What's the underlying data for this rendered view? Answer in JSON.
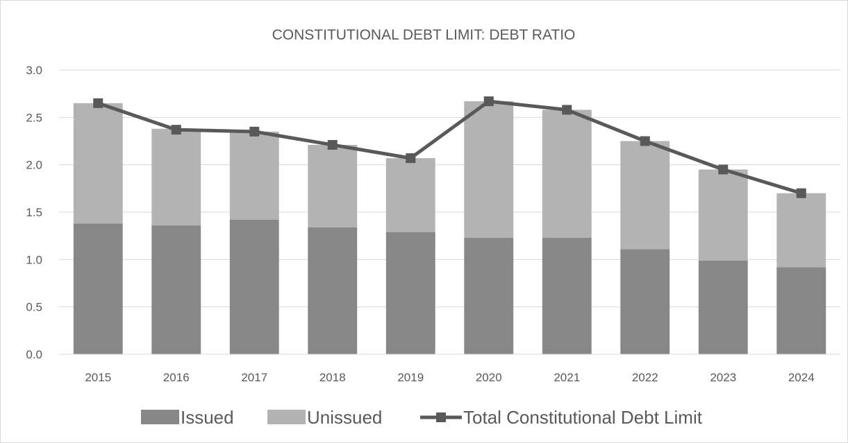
{
  "chart_data": {
    "type": "bar",
    "stacked": true,
    "title": "CONSTITUTIONAL DEBT LIMIT: DEBT RATIO",
    "xlabel": "",
    "ylabel": "",
    "categories": [
      "2015",
      "2016",
      "2017",
      "2018",
      "2019",
      "2020",
      "2021",
      "2022",
      "2023",
      "2024"
    ],
    "ylim": [
      0,
      3.0
    ],
    "yticks": [
      "0.0",
      "0.5",
      "1.0",
      "1.5",
      "2.0",
      "2.5",
      "3.0"
    ],
    "grid": true,
    "legend_position": "bottom",
    "series": [
      {
        "name": "Issued",
        "kind": "bar",
        "color": "#878787",
        "values": [
          1.38,
          1.36,
          1.42,
          1.34,
          1.29,
          1.23,
          1.23,
          1.11,
          0.99,
          0.92
        ]
      },
      {
        "name": "Unissued",
        "kind": "bar",
        "color": "#b3b3b3",
        "values": [
          1.27,
          1.02,
          0.93,
          0.87,
          0.78,
          1.44,
          1.35,
          1.14,
          0.96,
          0.78
        ]
      },
      {
        "name": "Total Constitutional Debt Limit",
        "kind": "line",
        "color": "#595959",
        "values": [
          2.65,
          2.37,
          2.35,
          2.21,
          2.07,
          2.67,
          2.58,
          2.25,
          1.95,
          1.7
        ]
      }
    ]
  }
}
